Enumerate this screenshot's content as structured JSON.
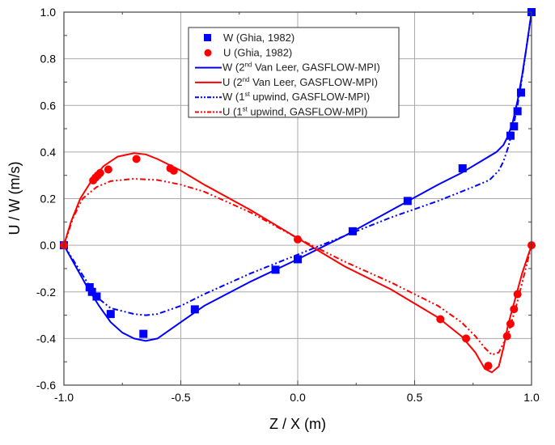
{
  "chart_data": {
    "type": "line",
    "xlabel": "Z / X (m)",
    "ylabel": "U / W (m/s)",
    "xlim": [
      -1.0,
      1.0
    ],
    "ylim": [
      -0.6,
      1.0
    ],
    "xticks": [
      "-1.0",
      "-0.5",
      "0.0",
      "0.5",
      "1.0"
    ],
    "yticks": [
      "-0.6",
      "-0.4",
      "-0.2",
      "0.0",
      "0.2",
      "0.4",
      "0.6",
      "0.8",
      "1.0"
    ],
    "grid": true,
    "legend_position": "top-center",
    "series": [
      {
        "name": "W (Ghia, 1982)",
        "legend": {
          "pre": "W  (Ghia, 1982)",
          "sup": "",
          "post": ""
        },
        "kind": "scatter",
        "marker": "square",
        "color": "#0000ff",
        "x": [
          -1.0,
          -0.89,
          -0.88,
          -0.86,
          -0.8,
          -0.66,
          -0.44,
          -0.095,
          0.0,
          0.235,
          0.47,
          0.705,
          0.91,
          0.925,
          0.94,
          0.955,
          1.0
        ],
        "y": [
          0.0,
          -0.18,
          -0.2,
          -0.22,
          -0.295,
          -0.38,
          -0.275,
          -0.105,
          -0.06,
          0.06,
          0.19,
          0.33,
          0.47,
          0.51,
          0.575,
          0.655,
          1.0
        ]
      },
      {
        "name": "U (Ghia, 1982)",
        "legend": {
          "pre": "U  (Ghia, 1982)",
          "sup": "",
          "post": ""
        },
        "kind": "scatter",
        "marker": "circle",
        "color": "#ff0000",
        "x": [
          -1.0,
          -0.875,
          -0.865,
          -0.855,
          -0.845,
          -0.81,
          -0.69,
          -0.545,
          -0.53,
          0.0,
          0.61,
          0.72,
          0.815,
          0.895,
          0.91,
          0.925,
          0.94,
          1.0
        ],
        "y": [
          0.0,
          0.278,
          0.29,
          0.3,
          0.31,
          0.325,
          0.37,
          0.33,
          0.32,
          0.025,
          -0.317,
          -0.4,
          -0.517,
          -0.39,
          -0.337,
          -0.274,
          -0.21,
          0.0
        ]
      },
      {
        "name": "W (2nd Van Leer, GASFLOW-MPI)",
        "legend": {
          "pre": "W (2",
          "sup": "nd",
          "post": " Van Leer, GASFLOW-MPI)"
        },
        "kind": "line",
        "dash": "solid",
        "color": "#0000ff",
        "x": [
          -1,
          -0.95,
          -0.9,
          -0.85,
          -0.8,
          -0.75,
          -0.7,
          -0.65,
          -0.6,
          -0.5,
          -0.4,
          -0.2,
          0,
          0.2,
          0.4,
          0.6,
          0.7,
          0.8,
          0.85,
          0.88,
          0.9,
          0.92,
          0.94,
          0.96,
          0.98,
          1
        ],
        "y": [
          0,
          -0.09,
          -0.18,
          -0.26,
          -0.33,
          -0.375,
          -0.4,
          -0.41,
          -0.4,
          -0.33,
          -0.26,
          -0.155,
          -0.06,
          0.04,
          0.15,
          0.26,
          0.31,
          0.37,
          0.4,
          0.43,
          0.47,
          0.53,
          0.62,
          0.73,
          0.86,
          1.0
        ]
      },
      {
        "name": "U (2nd Van Leer, GASFLOW-MPI)",
        "legend": {
          "pre": "U  (2",
          "sup": "nd",
          "post": " Van Leer, GASFLOW-MPI)"
        },
        "kind": "line",
        "dash": "solid",
        "color": "#ff0000",
        "x": [
          -1,
          -0.97,
          -0.93,
          -0.88,
          -0.83,
          -0.77,
          -0.7,
          -0.65,
          -0.6,
          -0.5,
          -0.4,
          -0.2,
          0,
          0.2,
          0.4,
          0.6,
          0.7,
          0.76,
          0.8,
          0.83,
          0.86,
          0.88,
          0.9,
          0.93,
          0.96,
          1
        ],
        "y": [
          0,
          0.1,
          0.2,
          0.28,
          0.34,
          0.38,
          0.395,
          0.39,
          0.37,
          0.32,
          0.26,
          0.15,
          0.03,
          -0.09,
          -0.19,
          -0.31,
          -0.39,
          -0.46,
          -0.53,
          -0.545,
          -0.52,
          -0.44,
          -0.34,
          -0.23,
          -0.12,
          0
        ]
      },
      {
        "name": "W (1st upwind, GASFLOW-MPI)",
        "legend": {
          "pre": "W (1",
          "sup": "st",
          "post": " upwind, GASFLOW-MPI)"
        },
        "kind": "line",
        "dash": "dash-dot-dot",
        "color": "#0000ff",
        "x": [
          -1,
          -0.95,
          -0.9,
          -0.85,
          -0.8,
          -0.7,
          -0.65,
          -0.6,
          -0.5,
          -0.4,
          -0.2,
          0,
          0.1,
          0.2,
          0.4,
          0.6,
          0.75,
          0.82,
          0.86,
          0.88,
          0.9,
          0.92,
          0.94,
          0.96,
          0.98,
          1
        ],
        "y": [
          0,
          -0.08,
          -0.16,
          -0.23,
          -0.27,
          -0.295,
          -0.3,
          -0.295,
          -0.26,
          -0.21,
          -0.12,
          -0.04,
          0.0,
          0.04,
          0.12,
          0.19,
          0.25,
          0.28,
          0.32,
          0.36,
          0.42,
          0.5,
          0.6,
          0.72,
          0.86,
          1.0
        ]
      },
      {
        "name": "U (1st upwind, GASFLOW-MPI)",
        "legend": {
          "pre": "U  (1",
          "sup": "st",
          "post": " upwind, GASFLOW-MPI)"
        },
        "kind": "line",
        "dash": "dash-dot-dot",
        "color": "#ff0000",
        "x": [
          -1,
          -0.96,
          -0.92,
          -0.86,
          -0.8,
          -0.7,
          -0.6,
          -0.5,
          -0.4,
          -0.2,
          0,
          0.2,
          0.4,
          0.6,
          0.7,
          0.76,
          0.8,
          0.83,
          0.86,
          0.9,
          0.94,
          1
        ],
        "y": [
          0,
          0.12,
          0.2,
          0.25,
          0.275,
          0.285,
          0.28,
          0.26,
          0.23,
          0.14,
          0.03,
          -0.07,
          -0.16,
          -0.26,
          -0.33,
          -0.39,
          -0.44,
          -0.47,
          -0.46,
          -0.38,
          -0.24,
          0
        ]
      }
    ]
  }
}
